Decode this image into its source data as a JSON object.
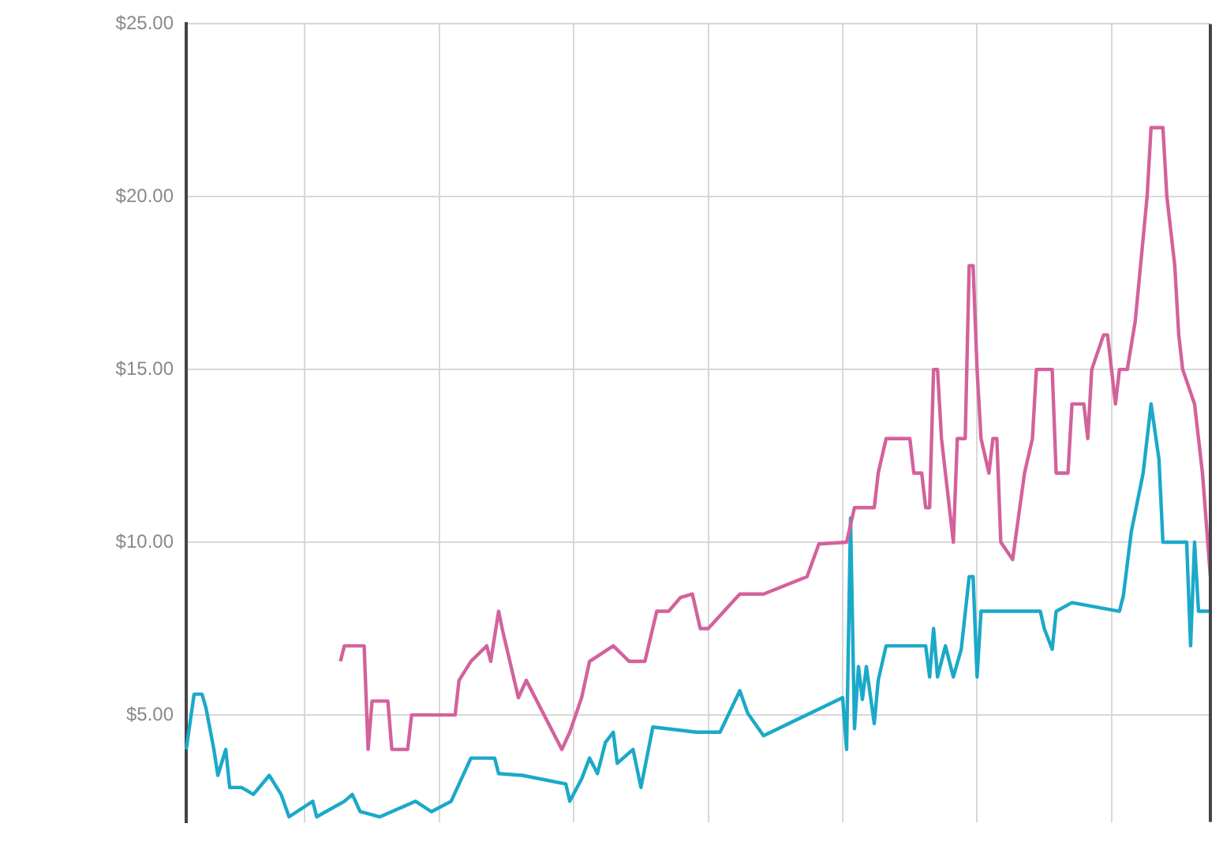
{
  "chart_data": {
    "type": "line",
    "categories": [
      null,
      null,
      null,
      null,
      null,
      null,
      null,
      null,
      null,
      null,
      null,
      null,
      null,
      null,
      null,
      null,
      null,
      null,
      null,
      null,
      null,
      null,
      null,
      null,
      null,
      null,
      null,
      null,
      null,
      null,
      null,
      null,
      null,
      null,
      null,
      null,
      null,
      null,
      null,
      null,
      null,
      null,
      null,
      null,
      null,
      null,
      null,
      null,
      null,
      null,
      null,
      null,
      null,
      null,
      null,
      null,
      null,
      null,
      null,
      null,
      null,
      null,
      null,
      null,
      null,
      null,
      null,
      null,
      null,
      null,
      null,
      null,
      null,
      null,
      null,
      null,
      null,
      null,
      null,
      null,
      null,
      null,
      null,
      null,
      null,
      null,
      null,
      null,
      null,
      null,
      null,
      null,
      null,
      null,
      null,
      null,
      null,
      null,
      null,
      null,
      null,
      null,
      null,
      null,
      null,
      null,
      null,
      null,
      null,
      null,
      null,
      null,
      null,
      null,
      null,
      null,
      null,
      null,
      null,
      null,
      null,
      null,
      null,
      null,
      null,
      null,
      null,
      null,
      null,
      null,
      null,
      null,
      null,
      null,
      null,
      null,
      null,
      null,
      null,
      null,
      null,
      null,
      null,
      null,
      null,
      null,
      null,
      null,
      null,
      null,
      null,
      null,
      null,
      null,
      null,
      null,
      null,
      null,
      null,
      null,
      null,
      null,
      null,
      null,
      null,
      null,
      null,
      null,
      null,
      null,
      null,
      null,
      null,
      null,
      null,
      null,
      null,
      null,
      null,
      null,
      null,
      null,
      null,
      null,
      null,
      null,
      null,
      null,
      null,
      null,
      null,
      null,
      null,
      null,
      null,
      null,
      null,
      null,
      null,
      null,
      null,
      null,
      null,
      null,
      null,
      null,
      null,
      null,
      null,
      null,
      null,
      null,
      null,
      null,
      null,
      null,
      null,
      null,
      null,
      null,
      null,
      null,
      null,
      null,
      null,
      null,
      null,
      null,
      null,
      null,
      null,
      null,
      null,
      null,
      null,
      null,
      null,
      null,
      null,
      null,
      null,
      null,
      null,
      null,
      null,
      null,
      null,
      null,
      null,
      null,
      null,
      null,
      null,
      null,
      null,
      null,
      null,
      null,
      null,
      null
    ],
    "series": [
      {
        "color": "#d4619c",
        "values": [
          null,
          null,
          null,
          null,
          null,
          null,
          null,
          null,
          null,
          null,
          null,
          null,
          null,
          null,
          null,
          null,
          null,
          null,
          null,
          null,
          null,
          null,
          null,
          null,
          null,
          null,
          null,
          null,
          null,
          null,
          null,
          null,
          null,
          null,
          null,
          null,
          null,
          null,
          null,
          6.55,
          7.0,
          null,
          null,
          null,
          null,
          7.0,
          4.0,
          5.4,
          null,
          null,
          null,
          5.4,
          4.0,
          null,
          null,
          null,
          4.0,
          5.0,
          null,
          null,
          null,
          null,
          null,
          null,
          null,
          null,
          null,
          null,
          5.0,
          6.0,
          null,
          null,
          6.55,
          null,
          null,
          null,
          7.0,
          6.55,
          null,
          8.0,
          7.45,
          null,
          null,
          null,
          5.5,
          null,
          6.0,
          null,
          null,
          null,
          null,
          null,
          null,
          null,
          null,
          4.0,
          null,
          4.5,
          null,
          null,
          5.5,
          null,
          6.55,
          null,
          null,
          null,
          null,
          null,
          7.0,
          null,
          null,
          null,
          6.55,
          null,
          null,
          null,
          6.55,
          null,
          null,
          8.0,
          null,
          null,
          8.0,
          null,
          null,
          8.4,
          null,
          null,
          8.5,
          null,
          7.5,
          null,
          7.5,
          null,
          null,
          null,
          null,
          null,
          null,
          null,
          8.5,
          null,
          null,
          null,
          null,
          null,
          8.5,
          null,
          null,
          null,
          null,
          null,
          null,
          null,
          null,
          null,
          null,
          9.0,
          null,
          null,
          9.95,
          null,
          null,
          null,
          null,
          null,
          null,
          10.0,
          null,
          11.0,
          null,
          null,
          null,
          null,
          11.0,
          12.0,
          null,
          13.0,
          null,
          null,
          null,
          null,
          null,
          13.0,
          12.0,
          null,
          12.0,
          11.0,
          11.0,
          15.0,
          15.0,
          13.0,
          null,
          null,
          10.0,
          13.0,
          null,
          13.0,
          18.0,
          18.0,
          15.0,
          13.0,
          null,
          12.0,
          13.0,
          13.0,
          10.0,
          null,
          null,
          9.5,
          null,
          null,
          12.0,
          null,
          13.0,
          15.0,
          null,
          null,
          null,
          15.0,
          12.0,
          null,
          null,
          12.0,
          14.0,
          null,
          null,
          14.0,
          13.0,
          15.0,
          null,
          null,
          16.0,
          16.0,
          null,
          14.0,
          15.0,
          null,
          15.0,
          null,
          16.4,
          null,
          null,
          20.0,
          22.0,
          null,
          null,
          22.0,
          20.0,
          null,
          18.0,
          16.0,
          15.0,
          null,
          null,
          14.0,
          null,
          12.0,
          null,
          9.0
        ]
      },
      {
        "color": "#1ba9c8",
        "values": [
          4.0,
          null,
          5.6,
          null,
          5.6,
          5.2,
          null,
          4.0,
          3.25,
          null,
          4.0,
          2.9,
          null,
          null,
          2.9,
          null,
          null,
          2.7,
          null,
          null,
          null,
          3.25,
          null,
          null,
          2.7,
          null,
          2.05,
          null,
          null,
          null,
          null,
          null,
          2.5,
          2.05,
          null,
          null,
          null,
          null,
          null,
          null,
          2.5,
          null,
          2.7,
          null,
          2.2,
          null,
          null,
          null,
          null,
          2.05,
          null,
          null,
          null,
          null,
          2.3,
          null,
          null,
          null,
          2.5,
          null,
          null,
          null,
          2.2,
          null,
          null,
          null,
          null,
          2.5,
          null,
          null,
          null,
          null,
          3.75,
          null,
          null,
          null,
          null,
          null,
          3.75,
          3.3,
          null,
          null,
          null,
          null,
          null,
          3.25,
          null,
          null,
          null,
          null,
          null,
          null,
          null,
          null,
          null,
          null,
          3.0,
          2.5,
          null,
          null,
          3.15,
          null,
          3.75,
          null,
          3.3,
          null,
          4.2,
          null,
          4.5,
          3.6,
          null,
          null,
          null,
          4.0,
          null,
          2.9,
          null,
          null,
          4.65,
          null,
          null,
          null,
          null,
          null,
          null,
          null,
          null,
          null,
          null,
          4.5,
          null,
          null,
          null,
          null,
          null,
          4.5,
          null,
          null,
          null,
          null,
          5.7,
          null,
          5.05,
          null,
          null,
          null,
          4.4,
          null,
          null,
          null,
          null,
          null,
          null,
          null,
          null,
          null,
          null,
          null,
          null,
          null,
          null,
          null,
          null,
          null,
          null,
          null,
          5.5,
          4.0,
          10.7,
          4.6,
          6.4,
          5.45,
          6.4,
          null,
          4.75,
          6.0,
          null,
          7.0,
          null,
          null,
          null,
          null,
          null,
          null,
          null,
          null,
          null,
          7.0,
          6.1,
          7.5,
          6.1,
          null,
          7.0,
          null,
          6.1,
          null,
          6.9,
          null,
          9.0,
          9.0,
          6.1,
          8.0,
          null,
          null,
          null,
          null,
          null,
          null,
          null,
          null,
          null,
          null,
          null,
          null,
          null,
          null,
          8.0,
          7.5,
          null,
          6.9,
          8.0,
          null,
          null,
          null,
          8.25,
          null,
          null,
          null,
          null,
          null,
          null,
          null,
          null,
          null,
          null,
          null,
          8.0,
          8.45,
          null,
          10.3,
          null,
          null,
          12.0,
          null,
          14.0,
          null,
          12.4,
          10.0,
          null,
          null,
          null,
          null,
          null,
          10.0,
          7.0,
          10.0,
          8.0,
          null,
          null,
          8.0
        ]
      }
    ],
    "ylim": [
      1.9,
      25
    ],
    "yticks": [
      {
        "value": 5,
        "label": "$5.00"
      },
      {
        "value": 10,
        "label": "$10.00"
      },
      {
        "value": 15,
        "label": "$15.00"
      },
      {
        "value": 20,
        "label": "$20.00"
      },
      {
        "value": 25,
        "label": "$25.00"
      }
    ],
    "grid": true,
    "tick_labels": "y",
    "marker": "none",
    "line_style": "solid"
  }
}
